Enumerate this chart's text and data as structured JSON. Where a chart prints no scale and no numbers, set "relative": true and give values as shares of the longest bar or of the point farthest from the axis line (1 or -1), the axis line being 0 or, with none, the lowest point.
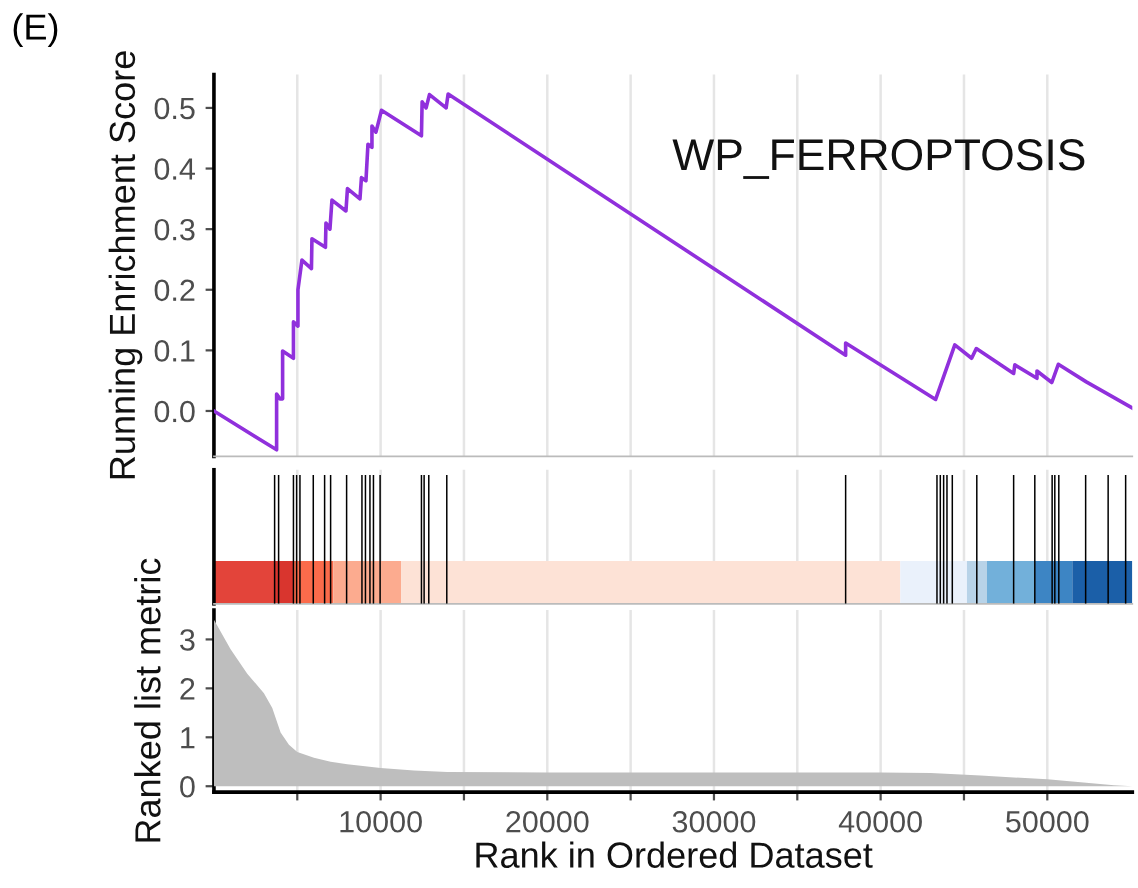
{
  "chart_data": [
    {
      "type": "line",
      "title": "WP_FERROPTOSIS",
      "ylabel": "Running Enrichment Score",
      "annotations": [
        "(E)"
      ],
      "color": "#9030dc",
      "line_style": "solid",
      "marker": "none",
      "grid": "x",
      "tick_labels": "y",
      "x": [
        0,
        3760,
        3760,
        3960,
        4120,
        4120,
        4770,
        4770,
        5040,
        5040,
        5280,
        5280,
        5850,
        5880,
        6690,
        6720,
        6960,
        7080,
        7920,
        8010,
        8760,
        8850,
        9120,
        9240,
        9480,
        9480,
        9720,
        10050,
        12450,
        12490,
        12730,
        12930,
        13930,
        14050,
        37900,
        37900,
        43300,
        44450,
        45460,
        45740,
        47980,
        48050,
        49380,
        49380,
        50270,
        50660,
        52340,
        55100
      ],
      "values": [
        0,
        -0.064,
        0.028,
        0.02,
        0.02,
        0.099,
        0.087,
        0.147,
        0.14,
        0.2,
        0.249,
        0.249,
        0.235,
        0.284,
        0.27,
        0.31,
        0.3,
        0.348,
        0.33,
        0.367,
        0.35,
        0.385,
        0.38,
        0.44,
        0.435,
        0.47,
        0.46,
        0.496,
        0.454,
        0.51,
        0.5,
        0.522,
        0.5,
        0.523,
        0.092,
        0.112,
        0.019,
        0.109,
        0.087,
        0.103,
        0.062,
        0.076,
        0.054,
        0.066,
        0.047,
        0.077,
        0.048,
        0.005
      ],
      "xlim": [
        0,
        55100
      ],
      "xticks": [
        {
          "value": 5000,
          "label": null
        },
        {
          "value": 10000,
          "label": null
        },
        {
          "value": 15000,
          "label": null
        },
        {
          "value": 20000,
          "label": null
        },
        {
          "value": 25000,
          "label": null
        },
        {
          "value": 30000,
          "label": null
        },
        {
          "value": 35000,
          "label": null
        },
        {
          "value": 40000,
          "label": null
        },
        {
          "value": 45000,
          "label": null
        },
        {
          "value": 50000,
          "label": null
        }
      ],
      "ylim": [
        -0.075,
        0.555
      ],
      "yticks": [
        {
          "value": 0,
          "label": "0.0"
        },
        {
          "value": 0.1,
          "label": "0.1"
        },
        {
          "value": 0.2,
          "label": "0.2"
        },
        {
          "value": 0.3,
          "label": "0.3"
        },
        {
          "value": 0.4,
          "label": "0.4"
        },
        {
          "value": 0.5,
          "label": "0.5"
        }
      ]
    },
    {
      "type": "bar",
      "relative": true,
      "color": "#000000",
      "grid": "x",
      "tick_labels": false,
      "x": [
        3640,
        3880,
        4770,
        4960,
        5160,
        5960,
        6640,
        7000,
        7960,
        8880,
        9090,
        9360,
        9570,
        9970,
        12450,
        12610,
        12890,
        13970,
        37900,
        43380,
        43580,
        43780,
        43980,
        44300,
        45770,
        47980,
        49250,
        50290,
        50450,
        50690,
        52300,
        53650,
        54700
      ],
      "values": [
        1,
        1,
        1,
        1,
        1,
        1,
        1,
        1,
        1,
        1,
        1,
        1,
        1,
        1,
        1,
        1,
        1,
        1,
        1,
        1,
        1,
        1,
        1,
        1,
        1,
        1,
        1,
        1,
        1,
        1,
        1,
        1,
        1
      ],
      "bands": [
        {
          "axis": "x",
          "from": 0,
          "to": 3640,
          "color": "#e3443a"
        },
        {
          "axis": "x",
          "from": 3640,
          "to": 4760,
          "color": "#d9352e"
        },
        {
          "axis": "x",
          "from": 4760,
          "to": 7160,
          "color": "#fb6b4b"
        },
        {
          "axis": "x",
          "from": 7160,
          "to": 11240,
          "color": "#fcab8f"
        },
        {
          "axis": "x",
          "from": 11240,
          "to": 41180,
          "color": "#fde2d6"
        },
        {
          "axis": "x",
          "from": 41180,
          "to": 45180,
          "color": "#eaf1fb"
        },
        {
          "axis": "x",
          "from": 45180,
          "to": 46380,
          "color": "#b8d3e8"
        },
        {
          "axis": "x",
          "from": 46380,
          "to": 49260,
          "color": "#72b0da"
        },
        {
          "axis": "x",
          "from": 49260,
          "to": 51500,
          "color": "#3d85c4"
        },
        {
          "axis": "x",
          "from": 51500,
          "to": 55100,
          "color": "#1b5fa8"
        }
      ],
      "xlim": [
        0,
        55100
      ],
      "xticks": [
        {
          "value": 5000,
          "label": null
        },
        {
          "value": 10000,
          "label": null
        },
        {
          "value": 15000,
          "label": null
        },
        {
          "value": 20000,
          "label": null
        },
        {
          "value": 25000,
          "label": null
        },
        {
          "value": 30000,
          "label": null
        },
        {
          "value": 35000,
          "label": null
        },
        {
          "value": 40000,
          "label": null
        },
        {
          "value": 45000,
          "label": null
        },
        {
          "value": 50000,
          "label": null
        }
      ]
    },
    {
      "type": "area",
      "xlabel": "Rank in Ordered Dataset",
      "ylabel": "Ranked list metric",
      "color": "#bebebe",
      "grid": "x",
      "x": [
        0,
        1000,
        2000,
        3000,
        3500,
        4000,
        4500,
        5000,
        6000,
        7000,
        8000,
        10000,
        12000,
        14000,
        20000,
        30000,
        40000,
        43000,
        46000,
        50000,
        52000,
        54000,
        55100
      ],
      "values": [
        3.4,
        2.8,
        2.3,
        1.9,
        1.6,
        1.1,
        0.85,
        0.7,
        0.58,
        0.5,
        0.45,
        0.37,
        0.32,
        0.29,
        0.28,
        0.28,
        0.28,
        0.27,
        0.22,
        0.14,
        0.08,
        0.02,
        0.0
      ],
      "xlim": [
        0,
        55100
      ],
      "xticks": [
        {
          "value": 5000,
          "label": null
        },
        10000,
        {
          "value": 15000,
          "label": null
        },
        20000,
        {
          "value": 25000,
          "label": null
        },
        30000,
        {
          "value": 35000,
          "label": null
        },
        40000,
        {
          "value": 45000,
          "label": null
        },
        50000
      ],
      "ylim": [
        -0.12,
        3.6
      ],
      "yticks": [
        0,
        1,
        2,
        3
      ]
    }
  ]
}
